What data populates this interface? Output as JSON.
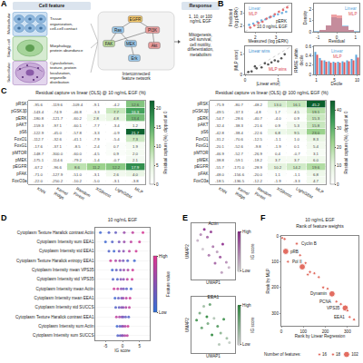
{
  "diagram": {
    "panel": "A",
    "cell_feature": "Cell feature",
    "levels": [
      {
        "name": "Multicellular",
        "description": "Tissue organization, cell-cell contact"
      },
      {
        "name": "Single-cell",
        "description": "Morphology, protein abundance"
      },
      {
        "name": "Subcellular",
        "description": "Cytoskeleton, texture, protein localization, organelle distribution"
      }
    ],
    "network": {
      "title": "Interconnected feature network",
      "nodes": [
        "EGFR",
        "Ras",
        "PI3K",
        "FAK",
        "MEK",
        "Akt",
        "Erk"
      ],
      "edges": [
        [
          0,
          1
        ],
        [
          0,
          2
        ],
        [
          1,
          4
        ],
        [
          4,
          6
        ],
        [
          2,
          5
        ],
        [
          3,
          1
        ],
        [
          3,
          2
        ]
      ]
    },
    "response": {
      "title": "Response",
      "stimulus": "1, 10, or 100 ng/mL EGF",
      "outcome": "Mitogenesis, cell survival, cell motility, differentiation, metabolism"
    }
  },
  "chart_data": [
    {
      "panel": "B",
      "type": "scatter",
      "x_label": "Measured (log pERK)",
      "y_label": "Predicted (log pERK)",
      "xlim": [
        1.5,
        3.75
      ],
      "xticks": [
        2,
        3
      ],
      "ylim": [
        1.5,
        3.75
      ],
      "yticks": [
        2,
        3
      ],
      "legend": "top-left",
      "annotations": [
        {
          "text": "pERK"
        },
        {
          "text": "10.0 ng/mL EGF"
        }
      ],
      "series": [
        {
          "name": "Linear",
          "color": "#5aa6dc",
          "x": [
            1.7,
            1.9,
            2.1,
            2.3,
            2.5,
            2.7,
            2.9,
            3.1,
            3.3,
            3.5
          ],
          "values": [
            2.05,
            2.15,
            2.3,
            2.4,
            2.5,
            2.65,
            2.75,
            2.9,
            3.0,
            3.1
          ]
        },
        {
          "name": "MLP",
          "color": "#e0565b",
          "x": [
            1.75,
            1.95,
            2.15,
            2.35,
            2.55,
            2.75,
            2.95,
            3.15,
            3.35,
            3.55
          ],
          "values": [
            1.85,
            2.0,
            2.2,
            2.3,
            2.55,
            2.7,
            2.9,
            3.1,
            3.25,
            3.45
          ]
        }
      ]
    },
    {
      "type": "histogram",
      "x_label": "Residual",
      "y_label": "Density",
      "bins": [
        -1.2,
        -0.9,
        -0.6,
        -0.3,
        0,
        0.3,
        0.6,
        0.9,
        1.2
      ],
      "xlim": [
        -1.2,
        1.2
      ],
      "xticks": [
        -1,
        0,
        1
      ],
      "ylim": [
        0,
        2.5
      ],
      "yticks": [
        0,
        1,
        2
      ],
      "legend": "top-right",
      "series": [
        {
          "name": "Linear",
          "color": "#5aa6dc",
          "values": [
            0.05,
            0.2,
            0.6,
            1.3,
            1.2,
            0.55,
            0.2,
            0.05
          ]
        },
        {
          "name": "MLP",
          "color": "#e0565b",
          "values": [
            0.03,
            0.15,
            0.55,
            1.5,
            1.45,
            0.5,
            0.15,
            0.03
          ]
        }
      ]
    },
    {
      "type": "scatter",
      "x_label": "|Linear error|",
      "y_label": "|MLP error|",
      "xlim": [
        0,
        1.4
      ],
      "xticks": [
        0,
        1
      ],
      "ylim": [
        0,
        1.4
      ],
      "yticks": [
        0,
        1
      ],
      "color": "#555555",
      "x": [
        0.1,
        0.2,
        0.35,
        0.5,
        0.6,
        0.8,
        0.9,
        1.1,
        1.2,
        0.3,
        0.7,
        1.0
      ],
      "values": [
        0.12,
        0.15,
        0.3,
        0.35,
        0.55,
        0.6,
        0.7,
        0.8,
        1.0,
        0.4,
        0.5,
        0.65
      ],
      "annotations": [
        {
          "text": "Linear wins",
          "color": "#3f8fcf"
        },
        {
          "text": "MLP wins",
          "color": "#d9434b"
        }
      ]
    },
    {
      "type": "bar",
      "x_label": "Decile",
      "y_label": "RMSE within decile",
      "categories": [
        "1",
        null,
        null,
        null,
        "5",
        null,
        null,
        null,
        null,
        "10"
      ],
      "ylim": [
        0,
        0.6
      ],
      "yticks": [
        0,
        0.2,
        0.4,
        0.6
      ],
      "legend": "top",
      "series": [
        {
          "name": "Linear",
          "color": "#5aa6dc",
          "values": [
            0.48,
            0.35,
            0.3,
            0.28,
            0.27,
            0.27,
            0.28,
            0.3,
            0.33,
            0.42
          ]
        },
        {
          "name": "MLP",
          "color": "#e0565b",
          "values": [
            0.42,
            0.3,
            0.27,
            0.25,
            0.25,
            0.25,
            0.26,
            0.28,
            0.3,
            0.36
          ]
        }
      ]
    },
    {
      "panel": "C",
      "type": "heatmap",
      "title": "Residual capture vs linear (OLS) @ 10 ng/mL EGF (%)",
      "rows": [
        "pRSK",
        "pGSK3β",
        "pERK",
        "pAKT",
        "pS6",
        "FoxO1",
        "FoxG1",
        "pMTOR",
        "pMEK",
        "pEGFR",
        "pFAK",
        "FoxO3a"
      ],
      "columns": [
        "KNN",
        "Kernel Ridge",
        "Random Forest",
        "XGBoost",
        "LightGBM",
        "MLP"
      ],
      "cells": [
        [
          -95.6,
          -119.6,
          -109.4,
          -9.1,
          -4.2,
          12.6
        ],
        [
          -143.4,
          -74.9,
          -46.8,
          -3.3,
          7.7,
          16.3
        ],
        [
          -180.8,
          -121.7,
          -60.2,
          2.8,
          4.8,
          13.4
        ],
        [
          -159.3,
          -97.1,
          -60.1,
          -7.7,
          -3.4,
          1.2
        ],
        [
          -122.9,
          -45.0,
          -57.8,
          -3.3,
          -0.9,
          21.7
        ],
        [
          -112.7,
          -32.6,
          -41.1,
          -7.9,
          -5.4,
          7.3
        ],
        [
          -17.6,
          -37.1,
          -8.5,
          -2.4,
          0.7,
          1.9
        ],
        [
          -148.7,
          -300.0,
          -60.0,
          -4.5,
          0.9,
          2.0
        ],
        [
          -175.1,
          -114.6,
          -79.2,
          -1.4,
          -0.7,
          2.1
        ],
        [
          -67.2,
          -96.6,
          8.6,
          11.2,
          12.2,
          17.9
        ],
        [
          -71.0,
          -127.9,
          -51.0,
          -3.1,
          2.6,
          4.0
        ],
        [
          -22.0,
          -250.2,
          -10.2,
          -5.0,
          -3.1,
          -3.8
        ]
      ],
      "data_labels": true,
      "colors": [
        "#ffffff",
        "#e3f3dc",
        "#9fd48f",
        "#41a05a",
        "#0b5e2c"
      ],
      "colorbar": {
        "title": "Residual capture (%), clipped at 0",
        "range": [
          0,
          22
        ],
        "ticks": [
          0,
          5,
          10,
          15,
          20
        ]
      }
    },
    {
      "type": "heatmap",
      "title": "Residual capture vs linear (OLS) @ 100 ng/mL EGF (%)",
      "rows": [
        "pRSK",
        "pGSK3β",
        "pERK",
        "pAKT",
        "pS6",
        "FoxO1",
        "FoxG1",
        "pMTOR",
        "pMEK",
        "pEGFR",
        "pFAK",
        "FoxO3a"
      ],
      "columns": [
        "KNN",
        "Kernel Ridge",
        "Random Forest",
        "XGBoost",
        "LightGBM",
        "MLP"
      ],
      "cells": [
        [
          -75.9,
          -80.7,
          -48.2,
          13.0,
          16.1,
          45.2
        ],
        [
          -49.5,
          -37.3,
          -4.8,
          1.7,
          4.5,
          19.1
        ],
        [
          -54.7,
          -28.6,
          -40.7,
          -4.0,
          0.9,
          15.3
        ],
        [
          -32.4,
          -38.3,
          -21.6,
          0.9,
          5.3,
          15.8
        ],
        [
          -42.8,
          -38.4,
          -22.6,
          6.8,
          9.5,
          23.0
        ],
        [
          -31.2,
          -70.6,
          -12.5,
          -1.1,
          1.0,
          8.3
        ],
        [
          -20.1,
          -52.6,
          -9.8,
          -1.9,
          0.1,
          5.4
        ],
        [
          -46.9,
          -52.7,
          -26.9,
          0.4,
          -0.7,
          3.1
        ],
        [
          -38.8,
          -59.1,
          -18.2,
          3.7,
          3.7,
          6.0
        ],
        [
          -55.7,
          -171.0,
          -28.9,
          10.2,
          14.2,
          19.6
        ],
        [
          -48.0,
          -156.6,
          -20.0,
          1.1,
          -1.1,
          6.8
        ],
        [
          -18.5,
          -136.5,
          -12.2,
          -1.9,
          -3.3,
          4.7
        ]
      ],
      "data_labels": true,
      "colors": [
        "#ffffff",
        "#e3f3dc",
        "#9fd48f",
        "#41a05a",
        "#0b5e2c"
      ],
      "colorbar": {
        "title": "Residual capture (%), clipped at 0",
        "range": [
          0,
          45
        ],
        "ticks": [
          0,
          10,
          20,
          30,
          40
        ]
      }
    },
    {
      "panel": "D",
      "type": "beeswarm",
      "title": "10 ng/mL EGF",
      "x_label": "IG score",
      "xlim": [
        -8,
        8
      ],
      "xticks": [
        -5,
        0,
        5
      ],
      "colors": [
        "#2f6fd8",
        "#e0338f"
      ],
      "colorbar": {
        "title": "Feature value",
        "range": [
          0,
          1
        ],
        "ticks": [
          {
            "value": 0,
            "label": "Low"
          },
          {
            "value": 1,
            "label": "High"
          }
        ]
      },
      "features": [
        "Cytoplasm Texture Haralick contrast Actin",
        "Cytoplasm Intensity sum EEA1",
        "Cytoplasm Intensity std EEA1",
        "Cytoplasm Texture Haralick entropy EEA1",
        "Cytoplasm Intensity mean VPS35",
        "Cytoplasm Intensity std VPS35",
        "Cytoplasm Intensity mean Actin",
        "Cytoplasm Intensity mean EEA1",
        "Cytoplasm Intensity std SUCCS",
        "Cytoplasm Texture Haralick contrast EEA1",
        "Cytoplasm Intensity sum Actin",
        "Cytoplasm Intensity sum SUCCS"
      ],
      "points": [
        {
          "x": [
            -6.5,
            -4,
            -2,
            0.5,
            3,
            6
          ],
          "feature_values": [
            0.1,
            0.2,
            0.3,
            0.6,
            0.8,
            0.95
          ]
        },
        {
          "x": [
            -5,
            -3,
            -1,
            0.5,
            2.5,
            5
          ],
          "feature_values": [
            0.1,
            0.2,
            0.4,
            0.6,
            0.8,
            0.9
          ]
        },
        {
          "x": [
            -4,
            -2.5,
            -1,
            0.3,
            2,
            4
          ],
          "feature_values": [
            0.2,
            0.1,
            0.4,
            0.5,
            0.8,
            0.9
          ]
        },
        {
          "x": [
            -3.5,
            -2,
            -0.8,
            0.2,
            1.5,
            3.5
          ],
          "feature_values": [
            0.9,
            0.7,
            0.6,
            0.4,
            0.2,
            0.1
          ]
        },
        {
          "x": [
            -3,
            -1.8,
            -0.6,
            0.4,
            1.6,
            3
          ],
          "feature_values": [
            0.1,
            0.3,
            0.4,
            0.6,
            0.7,
            0.9
          ]
        },
        {
          "x": [
            -2.8,
            -1.5,
            -0.5,
            0.3,
            1.4,
            2.8
          ],
          "feature_values": [
            0.2,
            0.2,
            0.5,
            0.5,
            0.8,
            0.9
          ]
        },
        {
          "x": [
            -2.5,
            -1.4,
            -0.4,
            0.3,
            1.2,
            2.5
          ],
          "feature_values": [
            0.9,
            0.8,
            0.5,
            0.4,
            0.2,
            0.1
          ]
        },
        {
          "x": [
            -2.2,
            -1.2,
            -0.3,
            0.2,
            1.1,
            2.2
          ],
          "feature_values": [
            0.1,
            0.3,
            0.4,
            0.6,
            0.8,
            0.9
          ]
        },
        {
          "x": [
            -2,
            -1,
            -0.3,
            0.2,
            1,
            2
          ],
          "feature_values": [
            0.2,
            0.3,
            0.5,
            0.5,
            0.7,
            0.8
          ]
        },
        {
          "x": [
            -1.8,
            -0.9,
            -0.2,
            0.2,
            0.9,
            1.8
          ],
          "feature_values": [
            0.8,
            0.7,
            0.5,
            0.4,
            0.3,
            0.2
          ]
        },
        {
          "x": [
            -1.6,
            -0.8,
            -0.2,
            0.2,
            0.8,
            1.6
          ],
          "feature_values": [
            0.1,
            0.3,
            0.4,
            0.6,
            0.7,
            0.9
          ]
        },
        {
          "x": [
            -1.4,
            -0.7,
            -0.2,
            0.1,
            0.7,
            1.4
          ],
          "feature_values": [
            0.2,
            0.3,
            0.5,
            0.5,
            0.7,
            0.8
          ]
        }
      ]
    },
    {
      "panel": "E",
      "type": "scatter",
      "title": "Actin",
      "x_label": "UMAP1",
      "y_label": "UMAP2",
      "tick_labels": false,
      "xlim": [
        0,
        8.5
      ],
      "ylim": [
        1,
        7.5
      ],
      "x": [
        1.2,
        1.8,
        2.5,
        3.1,
        3.8,
        4.2,
        5.0,
        5.6,
        6.1,
        6.8,
        7.3,
        2.2,
        4.6,
        5.9,
        3.4
      ],
      "values": [
        5.5,
        6.2,
        6.8,
        5.9,
        6.5,
        4.8,
        4.2,
        3.6,
        5.1,
        3.0,
        2.4,
        4.5,
        2.9,
        1.8,
        3.8
      ],
      "color_values": [
        0.2,
        0.4,
        0.9,
        0.6,
        0.8,
        0.5,
        0.3,
        0.7,
        0.9,
        0.4,
        0.2,
        0.1,
        0.6,
        0.3,
        0.5
      ],
      "colors": [
        "#d9d9d9",
        "#8e2c8e"
      ],
      "colorbar": {
        "title": "IG score",
        "range": [
          0,
          1
        ],
        "ticks": [
          {
            "value": 0,
            "label": "Low"
          },
          {
            "value": 1,
            "label": "High"
          }
        ]
      }
    },
    {
      "type": "scatter",
      "title": "EEA1",
      "x_label": "UMAP1",
      "y_label": "UMAP2",
      "tick_labels": false,
      "xlim": [
        0,
        8.5
      ],
      "ylim": [
        1,
        7.5
      ],
      "x": [
        1.0,
        1.6,
        2.4,
        3.0,
        3.6,
        4.4,
        5.1,
        5.7,
        6.3,
        6.9,
        7.4,
        2.0,
        4.0,
        5.4,
        3.2
      ],
      "values": [
        4.8,
        5.6,
        6.4,
        5.2,
        6.6,
        5.0,
        4.1,
        3.3,
        4.9,
        2.7,
        2.2,
        3.9,
        3.1,
        2.0,
        4.4
      ],
      "color_values": [
        0.8,
        0.5,
        0.3,
        0.9,
        0.6,
        0.2,
        0.7,
        0.4,
        0.8,
        0.3,
        0.1,
        0.6,
        0.9,
        0.2,
        0.5
      ],
      "colors": [
        "#d9d9d9",
        "#2e8b3e"
      ],
      "colorbar": {
        "title": "IG score",
        "range": [
          0,
          1
        ],
        "ticks": [
          {
            "value": 0,
            "label": "Low"
          },
          {
            "value": 1,
            "label": "High"
          }
        ]
      }
    },
    {
      "panel": "F",
      "type": "scatter",
      "title": "10 ng/mL EGF",
      "subtitle": "Rank of feature weights",
      "x_label": "Rank by Linear Regression",
      "y_label": "Rank by MLP",
      "xlim": [
        0,
        350
      ],
      "xticks": [
        0,
        100,
        200,
        300
      ],
      "ylim": [
        350,
        0
      ],
      "yticks": [
        0,
        100,
        200,
        300
      ],
      "color": "#d7301f",
      "x": [
        5,
        15,
        20,
        30,
        70,
        85,
        95,
        110,
        130,
        150,
        170,
        190,
        210,
        230,
        250,
        270,
        290,
        310,
        330,
        120,
        300
      ],
      "values": [
        8,
        12,
        60,
        100,
        30,
        75,
        120,
        105,
        140,
        145,
        160,
        200,
        205,
        225,
        255,
        265,
        280,
        315,
        325,
        150,
        290
      ],
      "sizes": [
        16,
        18,
        102,
        16,
        18,
        16,
        102,
        16,
        18,
        16,
        16,
        18,
        16,
        102,
        16,
        18,
        102,
        16,
        18,
        16,
        16
      ],
      "size_legend": {
        "title": "Number of features:",
        "values": [
          16,
          18,
          102
        ]
      },
      "annotations": [
        {
          "text": "Cyclin B",
          "x": 70,
          "y": 30
        },
        {
          "text": "pRB",
          "x": 20,
          "y": 60
        },
        {
          "text": "Pol II",
          "x": 30,
          "y": 100
        },
        {
          "text": "Dynamin",
          "x": 230,
          "y": 225
        },
        {
          "text": "PCNA",
          "x": 250,
          "y": 255
        },
        {
          "text": "VPS35",
          "x": 290,
          "y": 280
        },
        {
          "text": "EEA1",
          "x": 310,
          "y": 315
        }
      ]
    }
  ]
}
